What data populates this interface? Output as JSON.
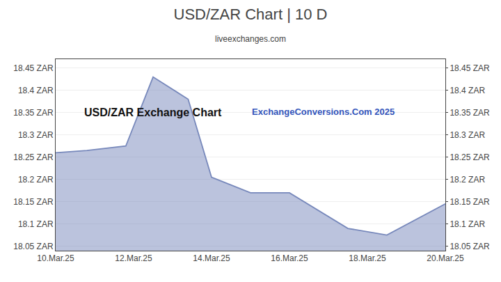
{
  "chart_data": {
    "type": "area",
    "title": "USD/ZAR Chart | 10 D",
    "subtitle": "liveexchanges.com",
    "annotations": [
      "USD/ZAR Exchange Chart",
      "ExchangeConversions.Com 2025"
    ],
    "x": [
      0.0,
      0.8,
      1.8,
      2.5,
      3.4,
      4.0,
      5.0,
      6.0,
      7.5,
      8.5,
      10.0
    ],
    "values": [
      18.26,
      18.265,
      18.275,
      18.43,
      18.38,
      18.205,
      18.17,
      18.17,
      18.09,
      18.075,
      18.145
    ],
    "color": "#7788bb",
    "xlim": [
      0,
      10
    ],
    "xticks": [
      {
        "value": 0,
        "label": "10.Mar.25"
      },
      {
        "value": 2,
        "label": "12.Mar.25"
      },
      {
        "value": 4,
        "label": "14.Mar.25"
      },
      {
        "value": 6,
        "label": "16.Mar.25"
      },
      {
        "value": 8,
        "label": "18.Mar.25"
      },
      {
        "value": 10,
        "label": "20.Mar.25"
      }
    ],
    "ylim": [
      18.04,
      18.47
    ],
    "yticks": [
      {
        "value": 18.05,
        "label": "18.05 ZAR"
      },
      {
        "value": 18.1,
        "label": "18.1 ZAR"
      },
      {
        "value": 18.15,
        "label": "18.15 ZAR"
      },
      {
        "value": 18.2,
        "label": "18.2 ZAR"
      },
      {
        "value": 18.25,
        "label": "18.25 ZAR"
      },
      {
        "value": 18.3,
        "label": "18.3 ZAR"
      },
      {
        "value": 18.35,
        "label": "18.35 ZAR"
      },
      {
        "value": 18.4,
        "label": "18.4 ZAR"
      },
      {
        "value": 18.45,
        "label": "18.45 ZAR"
      }
    ],
    "y2lim": [
      18.04,
      18.47
    ],
    "y2ticks": [
      {
        "value": 18.05,
        "label": "18.05 ZAR"
      },
      {
        "value": 18.1,
        "label": "18.1 ZAR"
      },
      {
        "value": 18.15,
        "label": "18.15 ZAR"
      },
      {
        "value": 18.2,
        "label": "18.2 ZAR"
      },
      {
        "value": 18.25,
        "label": "18.25 ZAR"
      },
      {
        "value": 18.3,
        "label": "18.3 ZAR"
      },
      {
        "value": 18.35,
        "label": "18.35 ZAR"
      },
      {
        "value": 18.4,
        "label": "18.4 ZAR"
      },
      {
        "value": 18.45,
        "label": "18.45 ZAR"
      }
    ],
    "grid": true
  }
}
